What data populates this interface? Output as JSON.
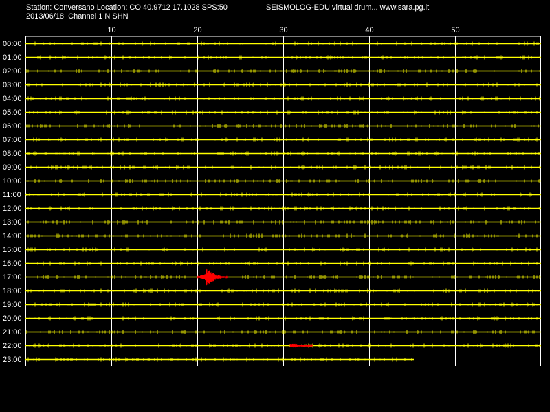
{
  "header": {
    "station_line": "Station: Conversano Location: CO 40.9712 17.1028 SPS:50",
    "app_line": "SEISMOLOG-EDU virtual drum... www.sara.pg.it",
    "date_line": "2013/06/18  Channel 1 N SHN"
  },
  "colors": {
    "background": "#000000",
    "trace": "#ffff00",
    "event": "#ff0000",
    "grid": "#ffffff",
    "text": "#ffffff"
  },
  "chart_data": {
    "type": "line",
    "title": "",
    "xlabel": "",
    "ylabel": "",
    "x_unit": "minutes",
    "x_ticks": [
      10,
      20,
      30,
      40,
      50
    ],
    "xlim": [
      0,
      60
    ],
    "row_labels": [
      "00:00",
      "01:00",
      "02:00",
      "03:00",
      "04:00",
      "05:00",
      "06:00",
      "07:00",
      "08:00",
      "09:00",
      "10:00",
      "11:00",
      "12:00",
      "13:00",
      "14:00",
      "15:00",
      "16:00",
      "17:00",
      "18:00",
      "19:00",
      "20:00",
      "21:00",
      "22:00",
      "23:00"
    ],
    "traces": [
      {
        "hour": "00:00",
        "start_min": 0,
        "end_min": 60
      },
      {
        "hour": "01:00",
        "start_min": 0,
        "end_min": 60
      },
      {
        "hour": "02:00",
        "start_min": 0,
        "end_min": 60
      },
      {
        "hour": "03:00",
        "start_min": 0,
        "end_min": 60
      },
      {
        "hour": "04:00",
        "start_min": 0,
        "end_min": 60
      },
      {
        "hour": "05:00",
        "start_min": 0,
        "end_min": 60
      },
      {
        "hour": "06:00",
        "start_min": 0,
        "end_min": 60
      },
      {
        "hour": "07:00",
        "start_min": 0,
        "end_min": 60
      },
      {
        "hour": "08:00",
        "start_min": 0,
        "end_min": 60
      },
      {
        "hour": "09:00",
        "start_min": 0,
        "end_min": 60
      },
      {
        "hour": "10:00",
        "start_min": 0,
        "end_min": 60
      },
      {
        "hour": "11:00",
        "start_min": 0,
        "end_min": 60
      },
      {
        "hour": "12:00",
        "start_min": 0,
        "end_min": 60
      },
      {
        "hour": "13:00",
        "start_min": 0,
        "end_min": 60
      },
      {
        "hour": "14:00",
        "start_min": 0,
        "end_min": 60
      },
      {
        "hour": "15:00",
        "start_min": 0,
        "end_min": 60
      },
      {
        "hour": "16:00",
        "start_min": 0,
        "end_min": 60
      },
      {
        "hour": "17:00",
        "start_min": 0,
        "end_min": 60
      },
      {
        "hour": "18:00",
        "start_min": 0,
        "end_min": 60
      },
      {
        "hour": "19:00",
        "start_min": 0,
        "end_min": 60
      },
      {
        "hour": "20:00",
        "start_min": 0,
        "end_min": 60
      },
      {
        "hour": "21:00",
        "start_min": 0,
        "end_min": 60
      },
      {
        "hour": "22:00",
        "start_min": 0,
        "end_min": 60
      },
      {
        "hour": "23:00",
        "start_min": 0,
        "end_min": 45.2
      }
    ],
    "events": [
      {
        "hour": "17:00",
        "start_min": 20.0,
        "peak_min": 21.0,
        "end_min": 23.5,
        "relative_amplitude": 1.0
      },
      {
        "hour": "22:00",
        "start_min": 30.8,
        "peak_min": 31.2,
        "end_min": 33.4,
        "relative_amplitude": 0.25
      }
    ],
    "grid": true
  }
}
